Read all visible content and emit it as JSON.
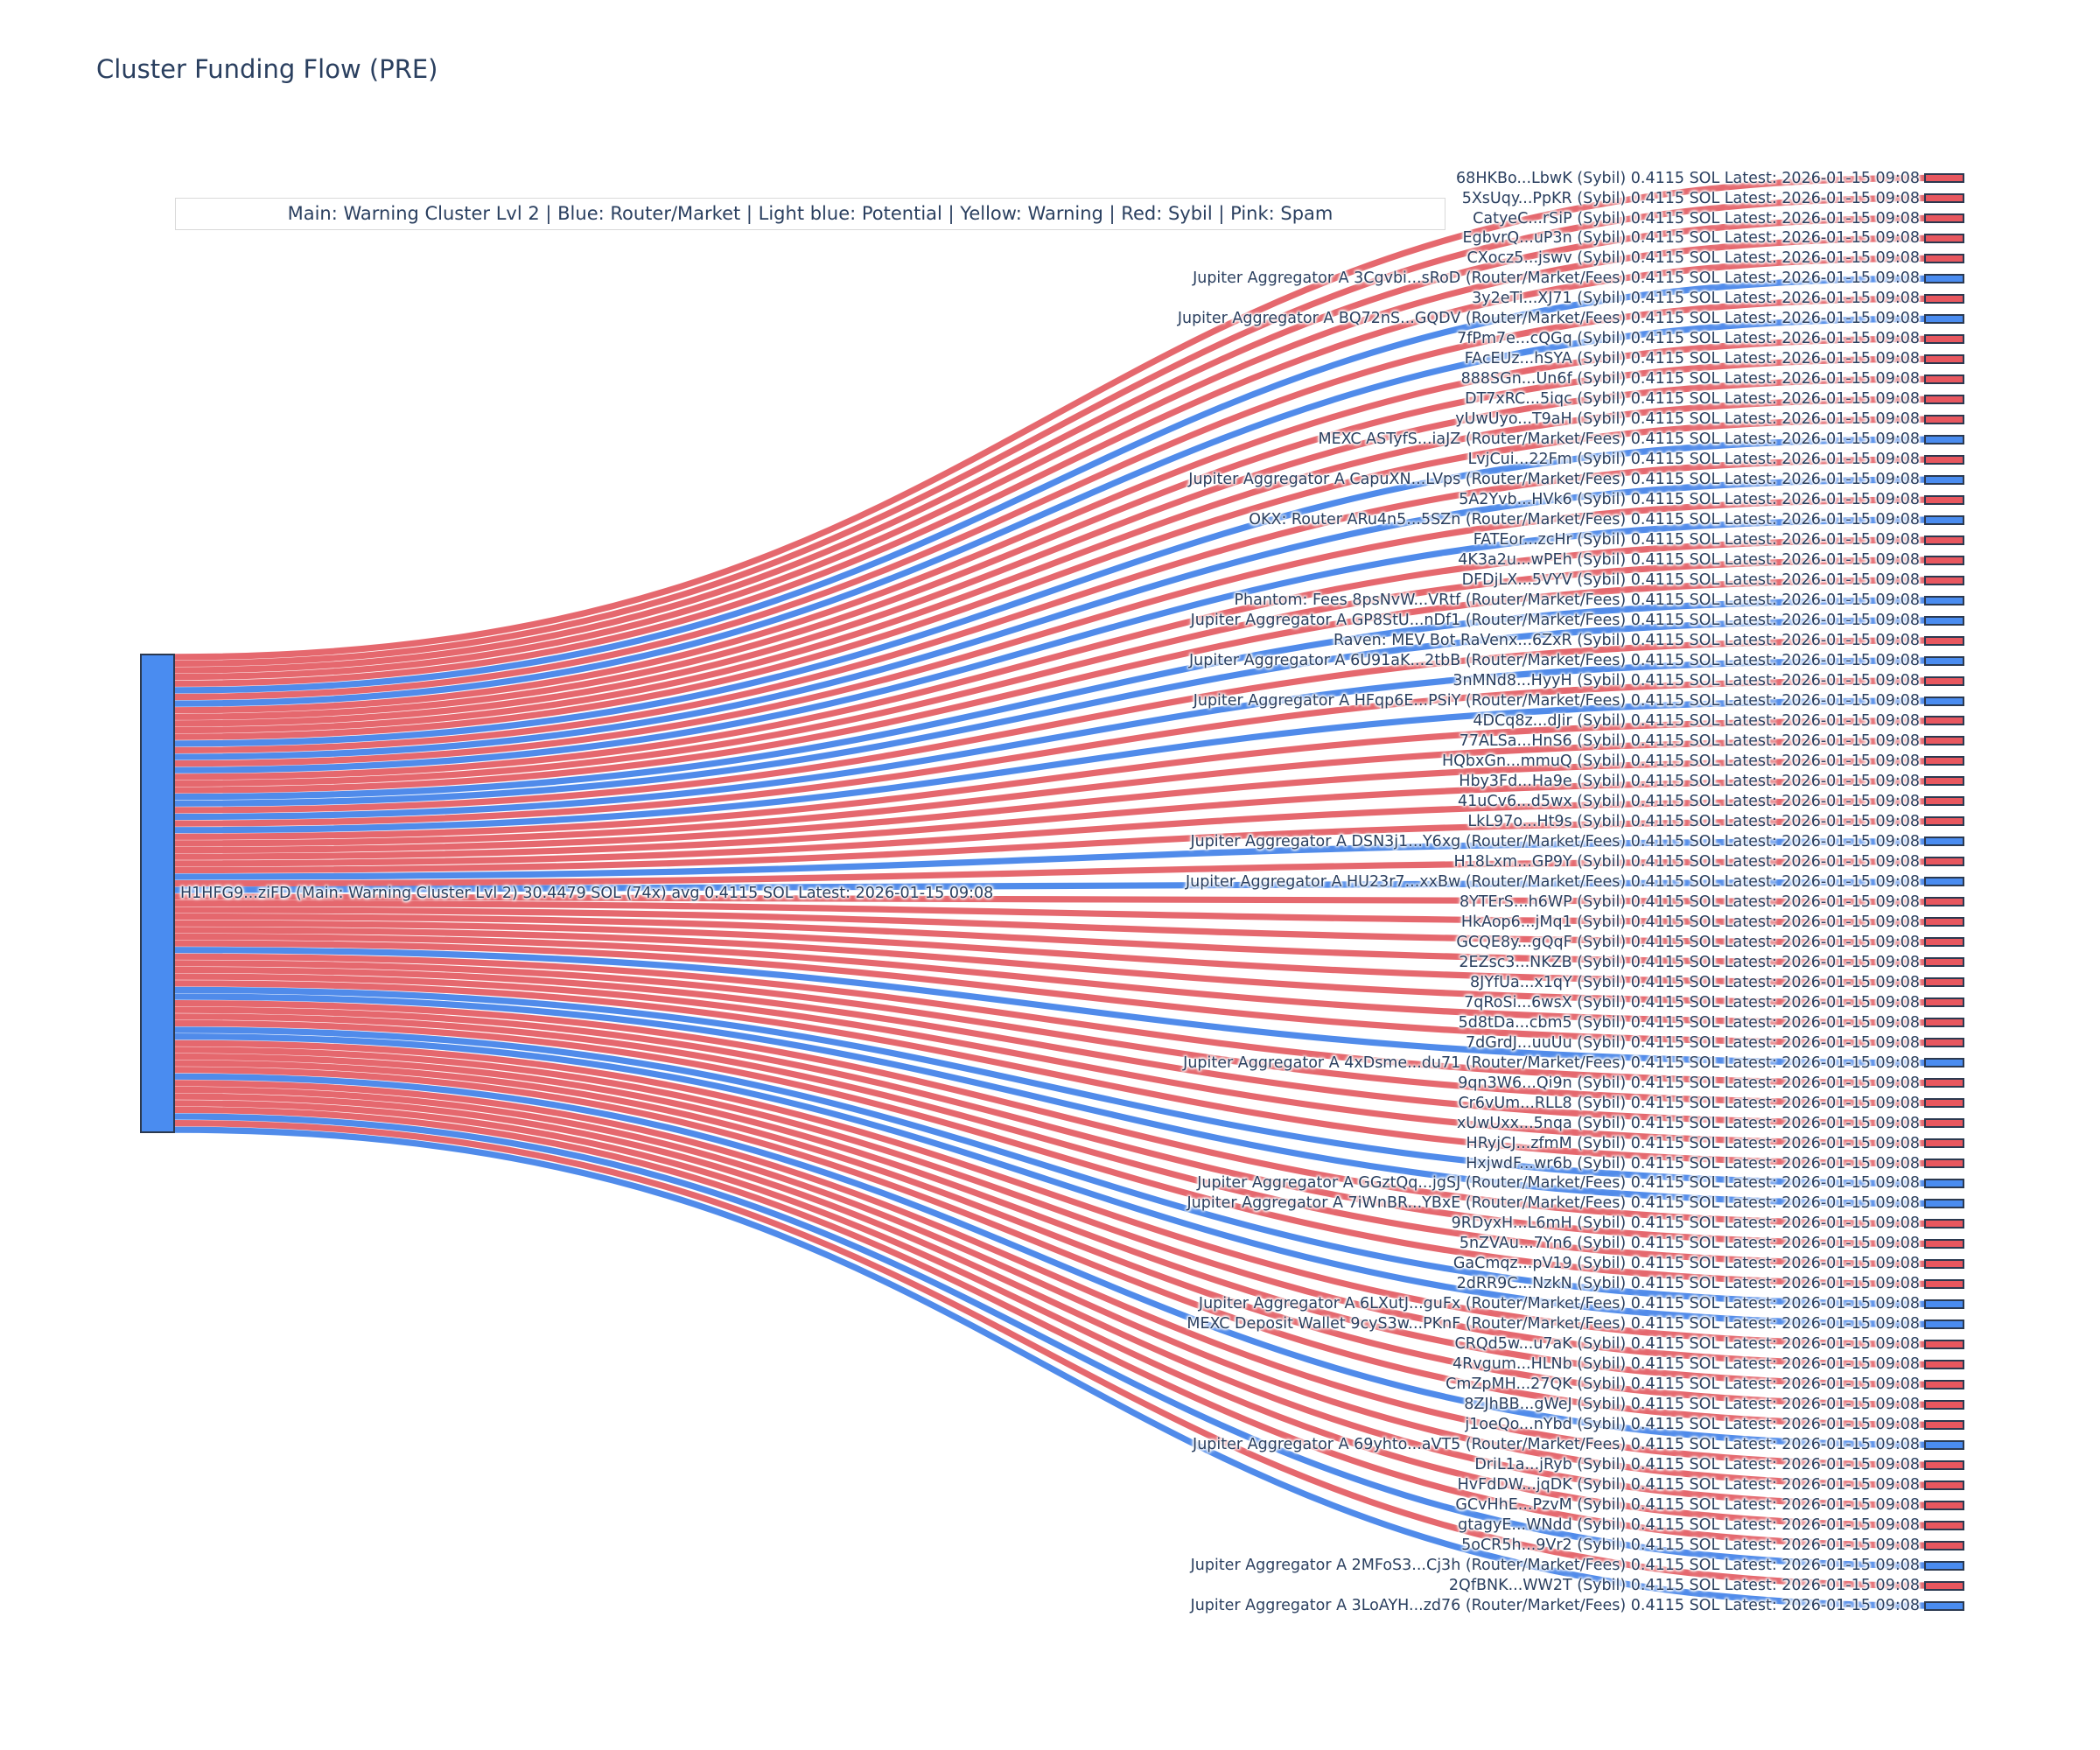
{
  "title": "Cluster Funding Flow (PRE)",
  "legend": {
    "text": "Main: Warning Cluster Lvl 2  |  Blue: Router/Market | Light blue: Potential | Yellow: Warning | Red: Sybil | Pink: Spam"
  },
  "colors": {
    "sybil_node": "#e8575f",
    "router_node": "#4a8cf0",
    "sybil_link": "#e04d55",
    "router_link": "#3d7ee8",
    "node_border": "#2b3950",
    "text": "#2a3f5f",
    "legend_border": "#d9d9d9",
    "background": "#ffffff"
  },
  "chart_data": {
    "type": "sankey",
    "unit": "SOL",
    "per_link_value_sol": "0.4115",
    "latest_timestamp": "2026-01-15 09:08",
    "source": {
      "name": "H1HFG9...ziFD",
      "category": "Main: Warning Cluster Lvl 2",
      "total_sol": "30.4479",
      "tx_count": 74,
      "avg_sol": "0.4115",
      "full_label": "H1HFG9...ziFD (Main: Warning Cluster Lvl 2) 30.4479 SOL (74x) avg 0.4115 SOL Latest: 2026-01-15 09:08"
    },
    "legend_mapping": {
      "Blue": "Router/Market",
      "Light blue": "Potential",
      "Yellow": "Warning",
      "Red": "Sybil",
      "Pink": "Spam"
    },
    "targets": [
      {
        "name": "68HKBo...LbwK",
        "category": "Sybil"
      },
      {
        "name": "5XsUqy...PpKR",
        "category": "Sybil"
      },
      {
        "name": "CatyeC...rSiP",
        "category": "Sybil"
      },
      {
        "name": "EgbvrQ...uP3n",
        "category": "Sybil"
      },
      {
        "name": "CXocz5...jswv",
        "category": "Sybil"
      },
      {
        "name": "Jupiter Aggregator A 3Cgvbi...sRoD",
        "category": "Router/Market/Fees"
      },
      {
        "name": "3y2eTi...XJ71",
        "category": "Sybil"
      },
      {
        "name": "Jupiter Aggregator A BQ72nS...GQDV",
        "category": "Router/Market/Fees"
      },
      {
        "name": "7fPm7e...cQGq",
        "category": "Sybil"
      },
      {
        "name": "FAcEUz...hSYA",
        "category": "Sybil"
      },
      {
        "name": "888SGn...Un6f",
        "category": "Sybil"
      },
      {
        "name": "DT7xRC...5iqc",
        "category": "Sybil"
      },
      {
        "name": "yUwUyo...T9aH",
        "category": "Sybil"
      },
      {
        "name": "MEXC ASTyfS...iaJZ",
        "category": "Router/Market/Fees"
      },
      {
        "name": "LvjCui...22Fm",
        "category": "Sybil"
      },
      {
        "name": "Jupiter Aggregator A CapuXN...LVps",
        "category": "Router/Market/Fees"
      },
      {
        "name": "5A2Yvb...HVk6",
        "category": "Sybil"
      },
      {
        "name": "OKX: Router ARu4n5...5SZn",
        "category": "Router/Market/Fees"
      },
      {
        "name": "FATEor...zcHr",
        "category": "Sybil"
      },
      {
        "name": "4K3a2u...wPEh",
        "category": "Sybil"
      },
      {
        "name": "DFDjLX...5VYV",
        "category": "Sybil"
      },
      {
        "name": "Phantom: Fees 8psNvW...VRtf",
        "category": "Router/Market/Fees"
      },
      {
        "name": "Jupiter Aggregator A GP8StU...nDf1",
        "category": "Router/Market/Fees"
      },
      {
        "name": "Raven: MEV Bot RaVenx...6ZxR",
        "category": "Sybil"
      },
      {
        "name": "Jupiter Aggregator A 6U91aK...2tbB",
        "category": "Router/Market/Fees"
      },
      {
        "name": "3nMNd8...HyyH",
        "category": "Sybil"
      },
      {
        "name": "Jupiter Aggregator A HFqp6E...PSiY",
        "category": "Router/Market/Fees"
      },
      {
        "name": "4DCq8z...dJir",
        "category": "Sybil"
      },
      {
        "name": "77ALSa...HnS6",
        "category": "Sybil"
      },
      {
        "name": "HQbxGn...mmuQ",
        "category": "Sybil"
      },
      {
        "name": "Hby3Fd...Ha9e",
        "category": "Sybil"
      },
      {
        "name": "41uCv6...d5wx",
        "category": "Sybil"
      },
      {
        "name": "LkL97o...Ht9s",
        "category": "Sybil"
      },
      {
        "name": "Jupiter Aggregator A DSN3j1...Y6xg",
        "category": "Router/Market/Fees"
      },
      {
        "name": "H18Lxm...GP9Y",
        "category": "Sybil"
      },
      {
        "name": "Jupiter Aggregator A HU23r7...xxBw",
        "category": "Router/Market/Fees"
      },
      {
        "name": "8YTErS...h6WP",
        "category": "Sybil"
      },
      {
        "name": "HkAop6...jMq1",
        "category": "Sybil"
      },
      {
        "name": "GCQE8y...gQqF",
        "category": "Sybil"
      },
      {
        "name": "2EZsc3...NKZB",
        "category": "Sybil"
      },
      {
        "name": "8JYfUa...x1qY",
        "category": "Sybil"
      },
      {
        "name": "7qRoSi...6wsX",
        "category": "Sybil"
      },
      {
        "name": "5d8tDa...cbm5",
        "category": "Sybil"
      },
      {
        "name": "7dGrdJ...uuUu",
        "category": "Sybil"
      },
      {
        "name": "Jupiter Aggregator A 4xDsme...du71",
        "category": "Router/Market/Fees"
      },
      {
        "name": "9qn3W6...Qi9n",
        "category": "Sybil"
      },
      {
        "name": "Cr6vUm...RLL8",
        "category": "Sybil"
      },
      {
        "name": "xUwUxx...5nqa",
        "category": "Sybil"
      },
      {
        "name": "HRyjCJ...zfmM",
        "category": "Sybil"
      },
      {
        "name": "HxjwdF...wr6b",
        "category": "Sybil"
      },
      {
        "name": "Jupiter Aggregator A GGztQq...jgSJ",
        "category": "Router/Market/Fees"
      },
      {
        "name": "Jupiter Aggregator A 7iWnBR...YBxE",
        "category": "Router/Market/Fees"
      },
      {
        "name": "9RDyxH...L6mH",
        "category": "Sybil"
      },
      {
        "name": "5nZVAu...7Yn6",
        "category": "Sybil"
      },
      {
        "name": "GaCmqz...pV19",
        "category": "Sybil"
      },
      {
        "name": "2dRR9C...NzkN",
        "category": "Sybil"
      },
      {
        "name": "Jupiter Aggregator A 6LXutJ...guFx",
        "category": "Router/Market/Fees"
      },
      {
        "name": "MEXC Deposit Wallet 9cyS3w...PKnF",
        "category": "Router/Market/Fees"
      },
      {
        "name": "CRQd5w...u7aK",
        "category": "Sybil"
      },
      {
        "name": "4Rvgum...HLNb",
        "category": "Sybil"
      },
      {
        "name": "CmZpMH...27QK",
        "category": "Sybil"
      },
      {
        "name": "8ZJhBB...gWeJ",
        "category": "Sybil"
      },
      {
        "name": "j1oeQo...nYbd",
        "category": "Sybil"
      },
      {
        "name": "Jupiter Aggregator A 69yhto...aVT5",
        "category": "Router/Market/Fees"
      },
      {
        "name": "DriL1a...jRyb",
        "category": "Sybil"
      },
      {
        "name": "HvFdDW...jqDK",
        "category": "Sybil"
      },
      {
        "name": "GCvHhE...PzvM",
        "category": "Sybil"
      },
      {
        "name": "gtagyE...WNdd",
        "category": "Sybil"
      },
      {
        "name": "5oCR5h...9Vr2",
        "category": "Sybil"
      },
      {
        "name": "Jupiter Aggregator A 2MFoS3...Cj3h",
        "category": "Router/Market/Fees"
      },
      {
        "name": "2QfBNK...WW2T",
        "category": "Sybil"
      },
      {
        "name": "Jupiter Aggregator A 3LoAYH...zd76",
        "category": "Router/Market/Fees"
      }
    ]
  }
}
